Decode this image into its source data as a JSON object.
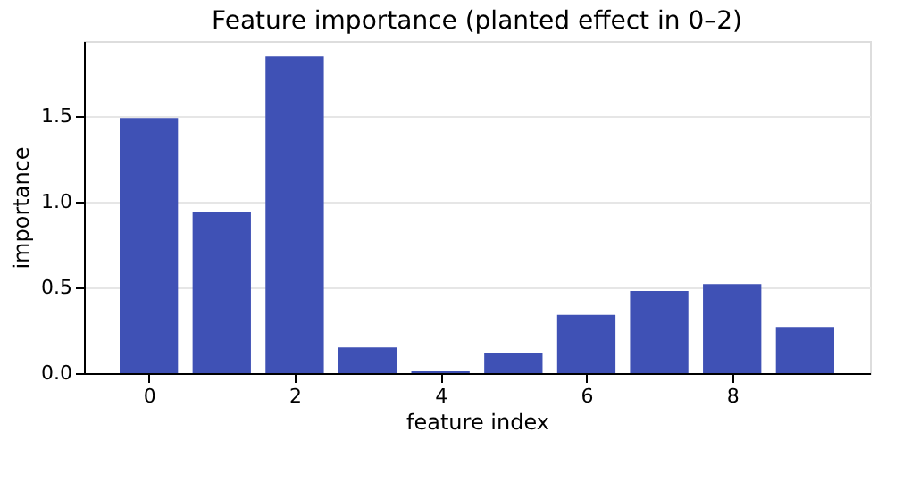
{
  "chart_data": {
    "type": "bar",
    "title": "Feature importance (planted effect in 0–2)",
    "xlabel": "feature index",
    "ylabel": "importance",
    "x": [
      0,
      1,
      2,
      3,
      4,
      5,
      6,
      7,
      8,
      9
    ],
    "values": [
      1.49,
      0.94,
      1.85,
      0.15,
      0.01,
      0.12,
      0.34,
      0.48,
      0.52,
      0.27
    ],
    "color": "#3f51b5",
    "xlim": [
      -0.89,
      9.89
    ],
    "xticks": [
      0,
      2,
      4,
      6,
      8
    ],
    "ylim": [
      0,
      1.94
    ],
    "yticks": [
      {
        "value": 0,
        "label": "0.0"
      },
      {
        "value": 0.5,
        "label": "0.5"
      },
      {
        "value": 1,
        "label": "1.0"
      },
      {
        "value": 1.5,
        "label": "1.5"
      }
    ],
    "grid": "y"
  }
}
